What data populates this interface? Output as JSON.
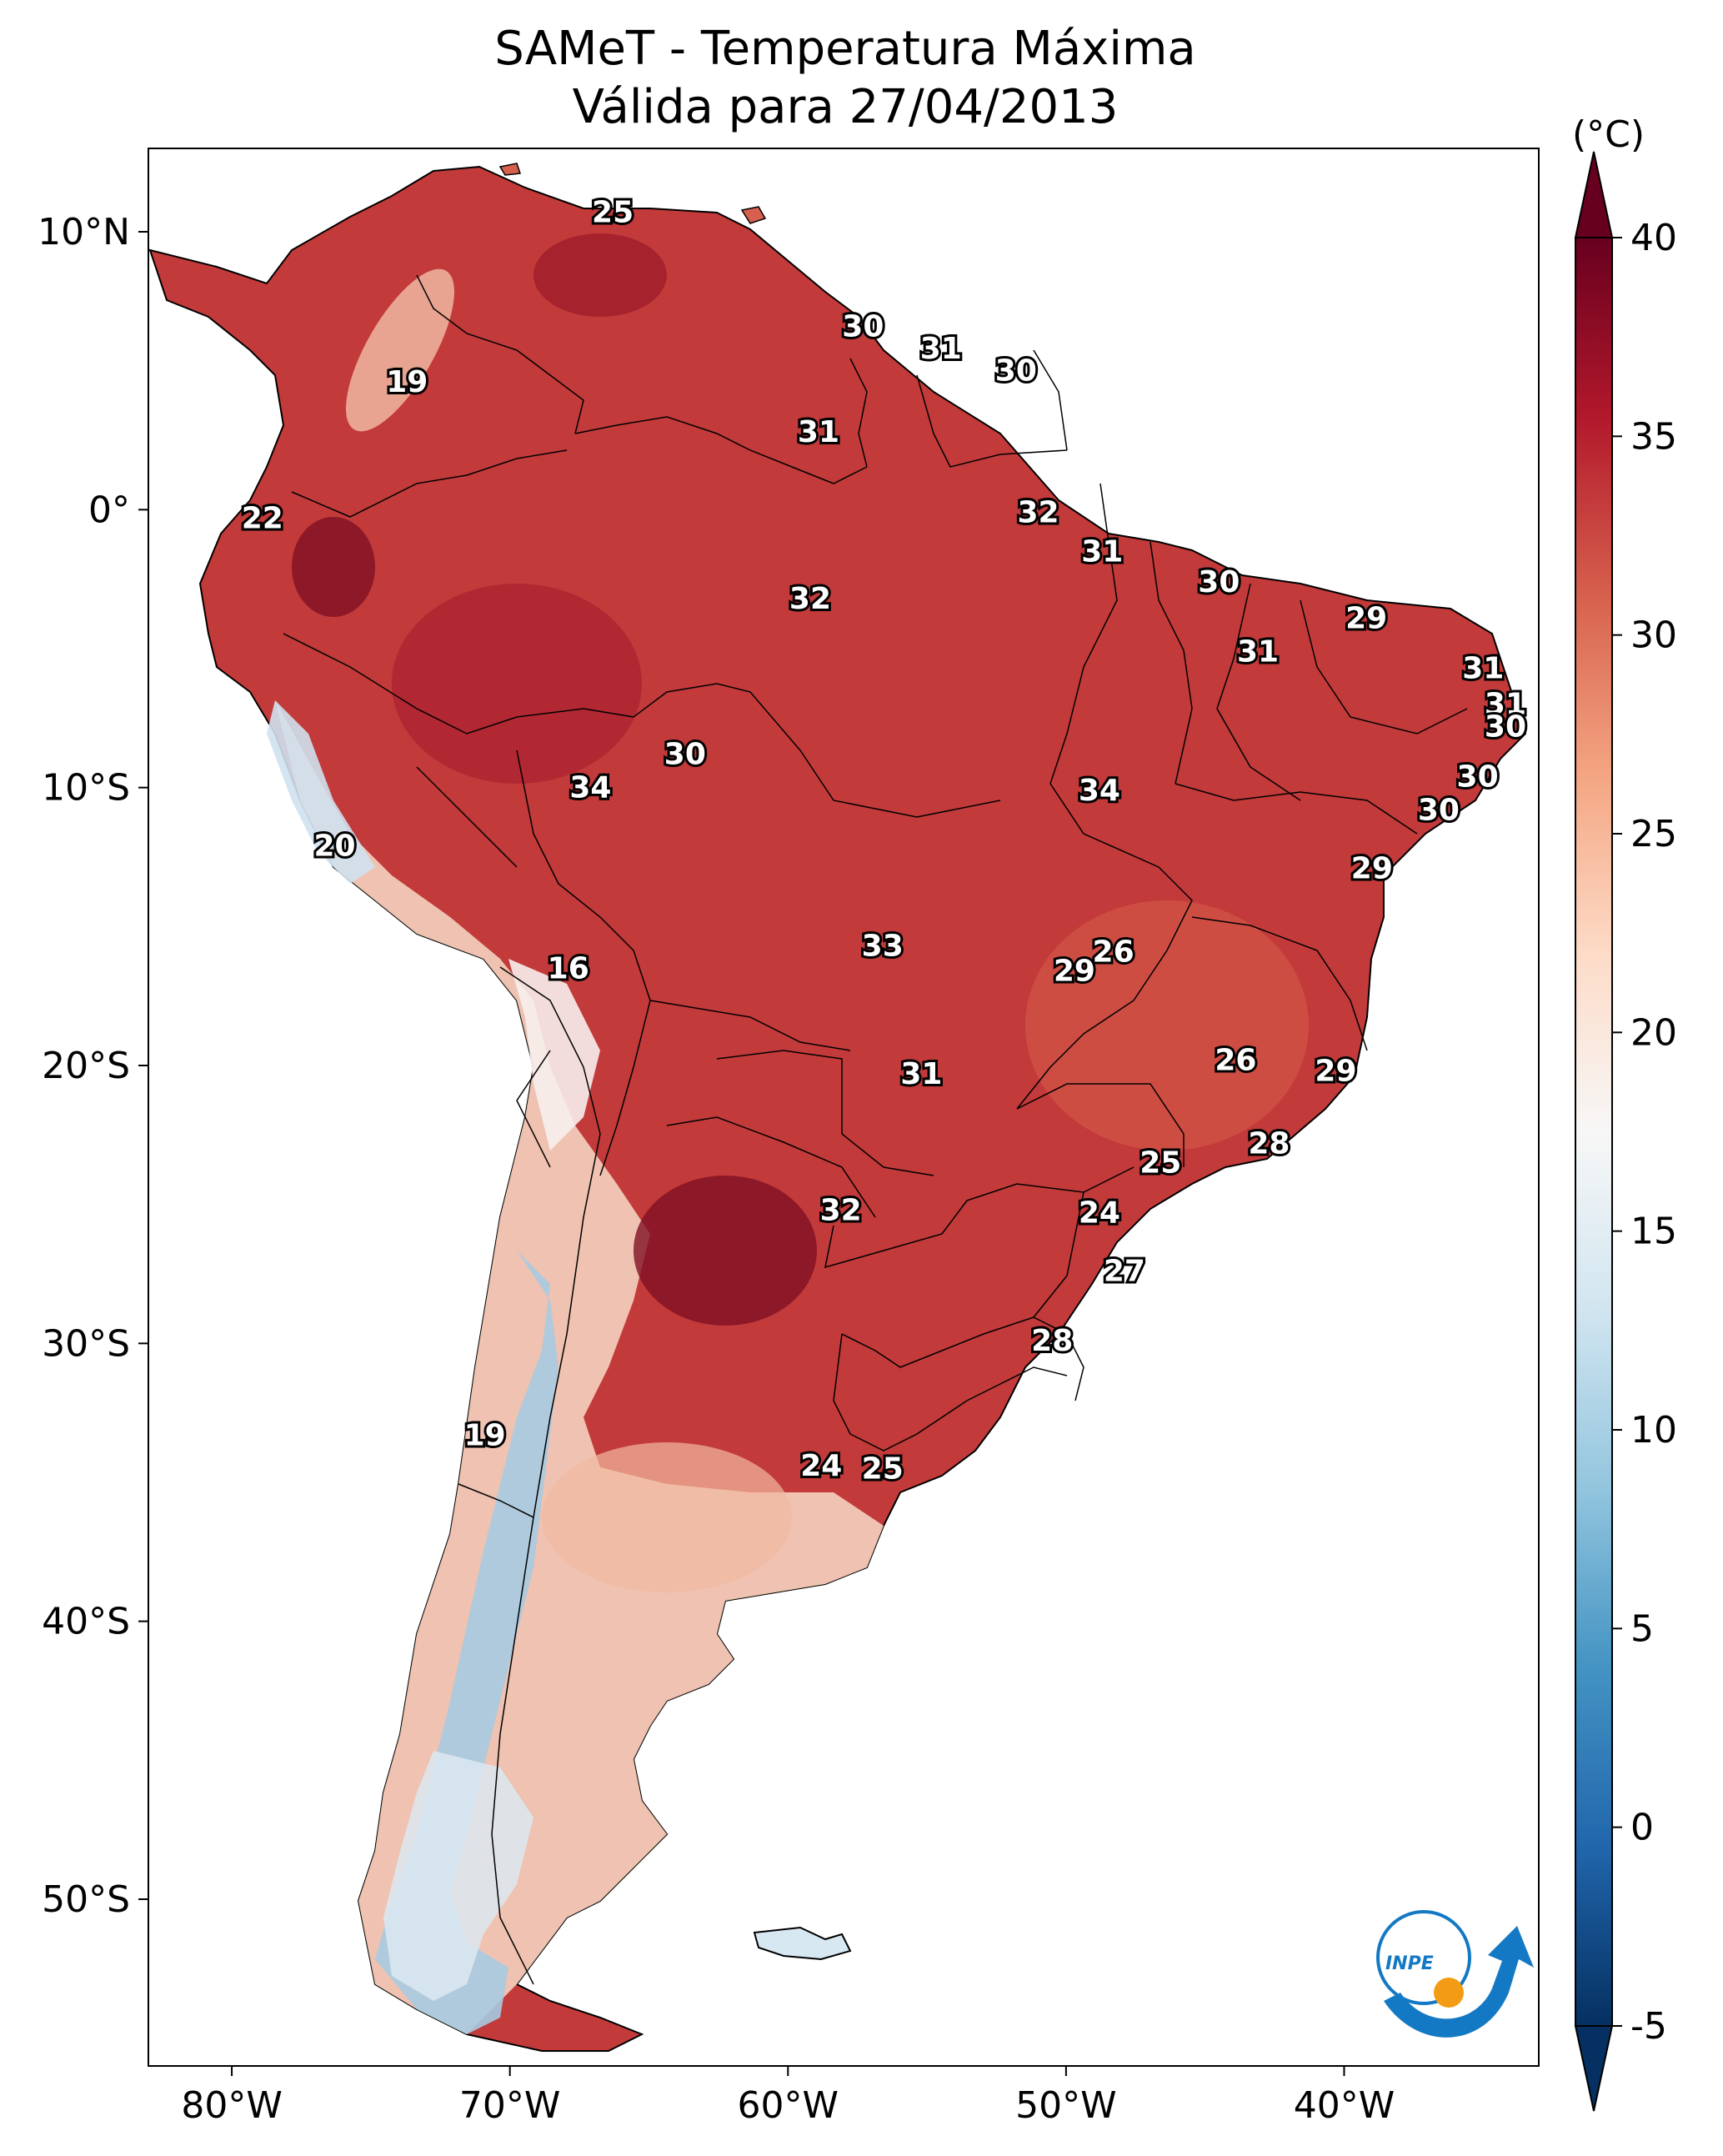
{
  "title": {
    "line1": "SAMeT - Temperatura Máxima",
    "line2": "Válida para 27/04/2013"
  },
  "colorbar": {
    "unit": "(°C)",
    "min": -5,
    "max": 40,
    "ticks": [
      "40",
      "35",
      "30",
      "25",
      "20",
      "15",
      "10",
      "5",
      "0",
      "-5"
    ],
    "colors": [
      "#053061",
      "#2166ac",
      "#4393c3",
      "#92c5de",
      "#d1e5f0",
      "#f7f7f7",
      "#fddbc7",
      "#f4a582",
      "#d6604d",
      "#b2182b",
      "#67001f"
    ]
  },
  "axes": {
    "lon_ticks": [
      "80°W",
      "70°W",
      "60°W",
      "50°W",
      "40°W"
    ],
    "lat_ticks": [
      "10°N",
      "0°",
      "10°S",
      "20°S",
      "30°S",
      "40°S",
      "50°S"
    ],
    "lon_range": [
      -83,
      -33
    ],
    "lat_range": [
      -56,
      13
    ]
  },
  "contour_labels": [
    {
      "text": "25",
      "lon": -66.3,
      "lat": 10.7
    },
    {
      "text": "19",
      "lon": -73.7,
      "lat": 4.6
    },
    {
      "text": "30",
      "lon": -57.3,
      "lat": 6.6
    },
    {
      "text": "31",
      "lon": -54.5,
      "lat": 5.8
    },
    {
      "text": "30",
      "lon": -51.8,
      "lat": 5.0
    },
    {
      "text": "31",
      "lon": -58.9,
      "lat": 2.8
    },
    {
      "text": "22",
      "lon": -78.9,
      "lat": -0.3
    },
    {
      "text": "32",
      "lon": -51.0,
      "lat": -0.1
    },
    {
      "text": "31",
      "lon": -48.7,
      "lat": -1.5
    },
    {
      "text": "30",
      "lon": -44.5,
      "lat": -2.6
    },
    {
      "text": "32",
      "lon": -59.2,
      "lat": -3.2
    },
    {
      "text": "29",
      "lon": -39.2,
      "lat": -3.9
    },
    {
      "text": "31",
      "lon": -43.1,
      "lat": -5.1
    },
    {
      "text": "31",
      "lon": -35.0,
      "lat": -5.7
    },
    {
      "text": "31",
      "lon": -34.2,
      "lat": -7.0
    },
    {
      "text": "30",
      "lon": -34.2,
      "lat": -7.8
    },
    {
      "text": "30",
      "lon": -63.7,
      "lat": -8.8
    },
    {
      "text": "34",
      "lon": -67.1,
      "lat": -10.0
    },
    {
      "text": "34",
      "lon": -48.8,
      "lat": -10.1
    },
    {
      "text": "30",
      "lon": -35.2,
      "lat": -9.6
    },
    {
      "text": "30",
      "lon": -36.6,
      "lat": -10.8
    },
    {
      "text": "20",
      "lon": -76.3,
      "lat": -12.1
    },
    {
      "text": "29",
      "lon": -39.0,
      "lat": -12.9
    },
    {
      "text": "26",
      "lon": -48.3,
      "lat": -15.9
    },
    {
      "text": "33",
      "lon": -56.6,
      "lat": -15.7
    },
    {
      "text": "29",
      "lon": -49.7,
      "lat": -16.6
    },
    {
      "text": "16",
      "lon": -67.9,
      "lat": -16.5
    },
    {
      "text": "26",
      "lon": -43.9,
      "lat": -19.8
    },
    {
      "text": "29",
      "lon": -40.3,
      "lat": -20.2
    },
    {
      "text": "31",
      "lon": -55.2,
      "lat": -20.3
    },
    {
      "text": "28",
      "lon": -42.7,
      "lat": -22.8
    },
    {
      "text": "25",
      "lon": -46.6,
      "lat": -23.5
    },
    {
      "text": "32",
      "lon": -58.1,
      "lat": -25.2
    },
    {
      "text": "24",
      "lon": -48.8,
      "lat": -25.3
    },
    {
      "text": "27",
      "lon": -47.9,
      "lat": -27.4
    },
    {
      "text": "28",
      "lon": -50.5,
      "lat": -29.9
    },
    {
      "text": "19",
      "lon": -70.9,
      "lat": -33.3
    },
    {
      "text": "24",
      "lon": -58.8,
      "lat": -34.4
    },
    {
      "text": "25",
      "lon": -56.6,
      "lat": -34.5
    }
  ],
  "logo": {
    "text": "INPE"
  }
}
